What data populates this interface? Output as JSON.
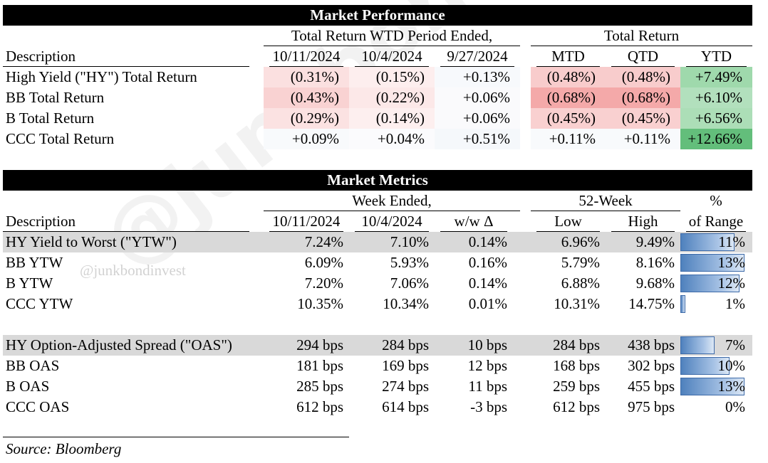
{
  "watermark_big": "@junkbondinvest",
  "watermark_small": "@junkbondinvest",
  "performance": {
    "title": "Market Performance",
    "group_wtd": "Total Return WTD Period Ended,",
    "group_total": "Total Return",
    "desc_header": "Description",
    "columns": [
      "10/11/2024",
      "10/4/2024",
      "9/27/2024",
      "MTD",
      "QTD",
      "YTD"
    ],
    "rows": [
      {
        "label": "High Yield (\"HY\") Total Return",
        "values": [
          "(0.31%)",
          "(0.15%)",
          "+0.13%",
          "(0.48%)",
          "(0.48%)",
          "+7.49%"
        ],
        "colors": [
          "#fbe0e0",
          "#fdeeee",
          "#f7f9fc",
          "#f8cccc",
          "#f8cccc",
          "#9fd9ac"
        ]
      },
      {
        "label": "BB Total Return",
        "values": [
          "(0.43%)",
          "(0.22%)",
          "+0.06%",
          "(0.68%)",
          "(0.68%)",
          "+6.10%"
        ],
        "colors": [
          "#f9d2d2",
          "#fce8e8",
          "#fafafc",
          "#f4a9a9",
          "#f4a9a9",
          "#b2e0bd"
        ]
      },
      {
        "label": "B Total Return",
        "values": [
          "(0.29%)",
          "(0.14%)",
          "+0.06%",
          "(0.45%)",
          "(0.45%)",
          "+6.56%"
        ],
        "colors": [
          "#fbe2e2",
          "#fdefef",
          "#fafafc",
          "#f9d0d0",
          "#f9d0d0",
          "#acdeb7"
        ]
      },
      {
        "label": "CCC Total Return",
        "values": [
          "+0.09%",
          "+0.04%",
          "+0.51%",
          "+0.11%",
          "+0.11%",
          "+12.66%"
        ],
        "colors": [
          "#f8fafc",
          "#fbfbfd",
          "#f5f8fb",
          "#f8fafc",
          "#f8fafc",
          "#63be7b"
        ]
      }
    ]
  },
  "metrics": {
    "title": "Market Metrics",
    "group_week": "Week Ended,",
    "group_52": "52-Week",
    "pct_header_1": "%",
    "pct_header_2": "of Range",
    "desc_header": "Description",
    "columns": [
      "10/11/2024",
      "10/4/2024",
      "w/w Δ",
      "Low",
      "High"
    ],
    "rows": [
      {
        "label": "HY Yield to Worst (\"YTW\")",
        "values": [
          "7.24%",
          "7.10%",
          "0.14%",
          "6.96%",
          "9.49%"
        ],
        "pct": "11%",
        "pct_value": 0.11,
        "shaded": true
      },
      {
        "label": "BB YTW",
        "values": [
          "6.09%",
          "5.93%",
          "0.16%",
          "5.79%",
          "8.16%"
        ],
        "pct": "13%",
        "pct_value": 0.13,
        "shaded": false
      },
      {
        "label": "B YTW",
        "values": [
          "7.20%",
          "7.06%",
          "0.14%",
          "6.88%",
          "9.68%"
        ],
        "pct": "12%",
        "pct_value": 0.12,
        "shaded": false
      },
      {
        "label": "CCC YTW",
        "values": [
          "10.35%",
          "10.34%",
          "0.01%",
          "10.31%",
          "14.75%"
        ],
        "pct": "1%",
        "pct_value": 0.01,
        "shaded": false
      },
      {
        "label": "HY Option-Adjusted Spread (\"OAS\")",
        "values": [
          "294 bps",
          "284 bps",
          "10 bps",
          "284 bps",
          "438 bps"
        ],
        "pct": "7%",
        "pct_value": 0.07,
        "shaded": true
      },
      {
        "label": "BB OAS",
        "values": [
          "181 bps",
          "169 bps",
          "12 bps",
          "168 bps",
          "302 bps"
        ],
        "pct": "10%",
        "pct_value": 0.1,
        "shaded": false
      },
      {
        "label": "B OAS",
        "values": [
          "285 bps",
          "274 bps",
          "11 bps",
          "259 bps",
          "455 bps"
        ],
        "pct": "13%",
        "pct_value": 0.13,
        "shaded": false
      },
      {
        "label": "CCC OAS",
        "values": [
          "612 bps",
          "614 bps",
          "-3 bps",
          "612 bps",
          "975 bps"
        ],
        "pct": "0%",
        "pct_value": 0.0,
        "shaded": false
      }
    ]
  },
  "source": "Source: Bloomberg"
}
